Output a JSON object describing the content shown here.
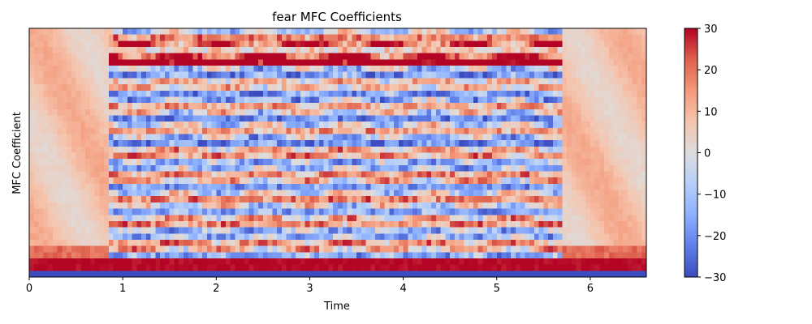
{
  "chart_data": {
    "type": "heatmap",
    "title": "fear MFC Coefficients",
    "xlabel": "Time",
    "ylabel": "MFC Coefficient",
    "xlim": [
      0,
      6.6
    ],
    "x_ticks": [
      0,
      1,
      2,
      3,
      4,
      5,
      6
    ],
    "x_tick_labels": [
      "0",
      "1",
      "2",
      "3",
      "4",
      "5",
      "6"
    ],
    "n_coefficients": 40,
    "n_frames": 132,
    "colormap": "coolwarm",
    "color_range": [
      -30,
      30
    ],
    "colorbar_ticks": [
      30,
      20,
      10,
      0,
      -10,
      -20,
      -30
    ],
    "colorbar_tick_labels": [
      "30",
      "20",
      "10",
      "0",
      "−10",
      "−20",
      "−30"
    ],
    "speech_segment": [
      0.8,
      5.65
    ],
    "colors": {
      "cold": "#3b4cc0",
      "neutral": "#dddddd",
      "warm": "#b40426"
    }
  }
}
